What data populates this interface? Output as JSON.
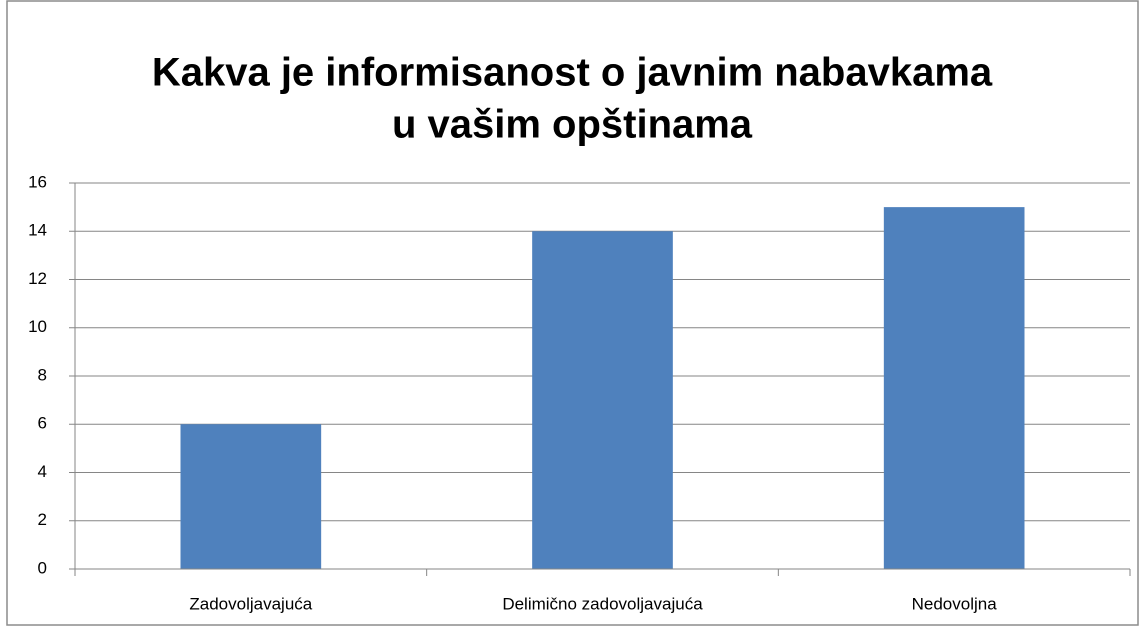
{
  "chart_data": {
    "type": "bar",
    "title": [
      "Kakva je informisanost o javnim nabavkama",
      "u vašim opštinama"
    ],
    "categories": [
      "Zadovoljavajuća",
      "Delimično zadovoljavajuća",
      "Nedovoljna"
    ],
    "values": [
      6,
      14,
      15
    ],
    "color": "#4f81bd",
    "ylim": [
      0,
      16
    ],
    "yticks": [
      0,
      2,
      4,
      6,
      8,
      10,
      12,
      14,
      16
    ],
    "grid": true
  }
}
